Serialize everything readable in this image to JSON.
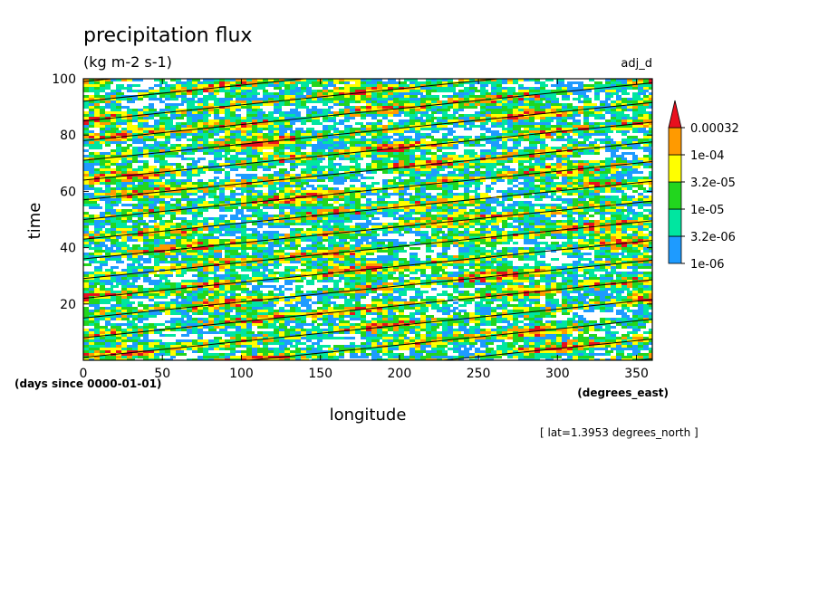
{
  "chart_data": {
    "type": "heatmap",
    "title": "precipitation flux",
    "units": "(kg m-2 s-1)",
    "tag": "adj_d",
    "xlabel": "longitude",
    "x_units": "(degrees_east)",
    "ylabel": "time",
    "y_units": "(days since 0000-01-01)",
    "slice_note": "[ lat=1.3953 degrees_north ]",
    "xlim": [
      0,
      360
    ],
    "ylim": [
      0,
      100
    ],
    "x_ticks": [
      "0",
      "50",
      "100",
      "150",
      "200",
      "250",
      "300",
      "350"
    ],
    "y_ticks": [
      "20",
      "40",
      "60",
      "80",
      "100"
    ],
    "colorbar": {
      "labels": [
        "0.00032",
        "1e-04",
        "3.2e-05",
        "1e-05",
        "3.2e-06",
        "1e-06"
      ],
      "levels": [
        1e-06,
        3.2e-06,
        1e-05,
        3.2e-05,
        0.0001,
        0.00032
      ],
      "colors": [
        "#1e9bff",
        "#00e6a0",
        "#22d61e",
        "#ffff00",
        "#ff9a00",
        "#e8101e"
      ]
    },
    "contour_lines_slope_deg_per_day": 17.5,
    "contour_phase_days": [
      -20,
      -13,
      -6,
      1,
      8,
      15,
      22,
      29,
      36,
      43,
      50,
      57,
      64,
      71,
      78,
      85,
      92,
      99
    ]
  }
}
